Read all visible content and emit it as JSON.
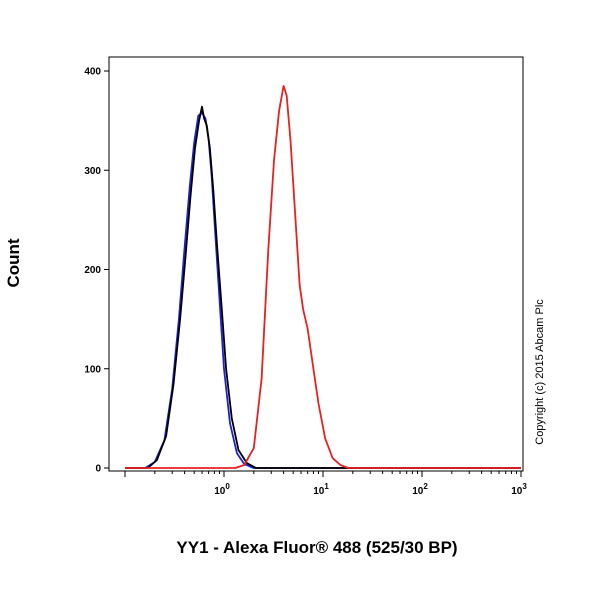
{
  "chart_data": {
    "type": "line",
    "xlabel": "YY1 - Alexa Fluor® 488 (525/30 BP)",
    "ylabel": "Count",
    "x_scale": "log",
    "xlim": [
      0.1,
      1000
    ],
    "ylim": [
      0,
      400
    ],
    "y_ticks": [
      0,
      100,
      200,
      300,
      400
    ],
    "x_ticks": [
      {
        "value": 1,
        "base": "10",
        "exp": "0"
      },
      {
        "value": 10,
        "base": "10",
        "exp": "1"
      },
      {
        "value": 100,
        "base": "10",
        "exp": "2"
      },
      {
        "value": 1000,
        "base": "10",
        "exp": "3"
      }
    ],
    "grid": false,
    "series": [
      {
        "color": "#1f1fd6",
        "points": [
          [
            0.1,
            0
          ],
          [
            0.16,
            0
          ],
          [
            0.2,
            6
          ],
          [
            0.25,
            28
          ],
          [
            0.3,
            80
          ],
          [
            0.35,
            150
          ],
          [
            0.4,
            222
          ],
          [
            0.45,
            283
          ],
          [
            0.5,
            328
          ],
          [
            0.55,
            355
          ],
          [
            0.6,
            358
          ],
          [
            0.65,
            352
          ],
          [
            0.7,
            330
          ],
          [
            0.75,
            295
          ],
          [
            0.8,
            250
          ],
          [
            0.9,
            170
          ],
          [
            1.0,
            100
          ],
          [
            1.15,
            45
          ],
          [
            1.35,
            15
          ],
          [
            1.6,
            4
          ],
          [
            2.0,
            0
          ],
          [
            1000,
            0
          ]
        ]
      },
      {
        "color": "#000000",
        "points": [
          [
            0.1,
            0
          ],
          [
            0.17,
            0
          ],
          [
            0.21,
            8
          ],
          [
            0.26,
            32
          ],
          [
            0.31,
            85
          ],
          [
            0.36,
            150
          ],
          [
            0.41,
            215
          ],
          [
            0.46,
            275
          ],
          [
            0.51,
            322
          ],
          [
            0.56,
            350
          ],
          [
            0.6,
            364
          ],
          [
            0.63,
            352
          ],
          [
            0.67,
            345
          ],
          [
            0.72,
            322
          ],
          [
            0.78,
            280
          ],
          [
            0.85,
            225
          ],
          [
            0.95,
            160
          ],
          [
            1.05,
            100
          ],
          [
            1.2,
            50
          ],
          [
            1.4,
            18
          ],
          [
            1.7,
            5
          ],
          [
            2.1,
            0
          ],
          [
            1000,
            0
          ]
        ]
      },
      {
        "color": "#e52222",
        "points": [
          [
            0.1,
            0
          ],
          [
            1.3,
            0
          ],
          [
            1.6,
            3
          ],
          [
            2.0,
            20
          ],
          [
            2.4,
            90
          ],
          [
            2.8,
            220
          ],
          [
            3.2,
            310
          ],
          [
            3.6,
            360
          ],
          [
            4.0,
            385
          ],
          [
            4.3,
            375
          ],
          [
            4.7,
            330
          ],
          [
            5.2,
            260
          ],
          [
            5.8,
            185
          ],
          [
            6.3,
            160
          ],
          [
            7.0,
            140
          ],
          [
            8.0,
            100
          ],
          [
            9.0,
            65
          ],
          [
            10.5,
            30
          ],
          [
            12.5,
            10
          ],
          [
            15,
            3
          ],
          [
            18,
            0
          ],
          [
            1000,
            0
          ]
        ]
      }
    ],
    "annotations": [
      "Copyright (c) 2015 Abcam Plc"
    ]
  }
}
